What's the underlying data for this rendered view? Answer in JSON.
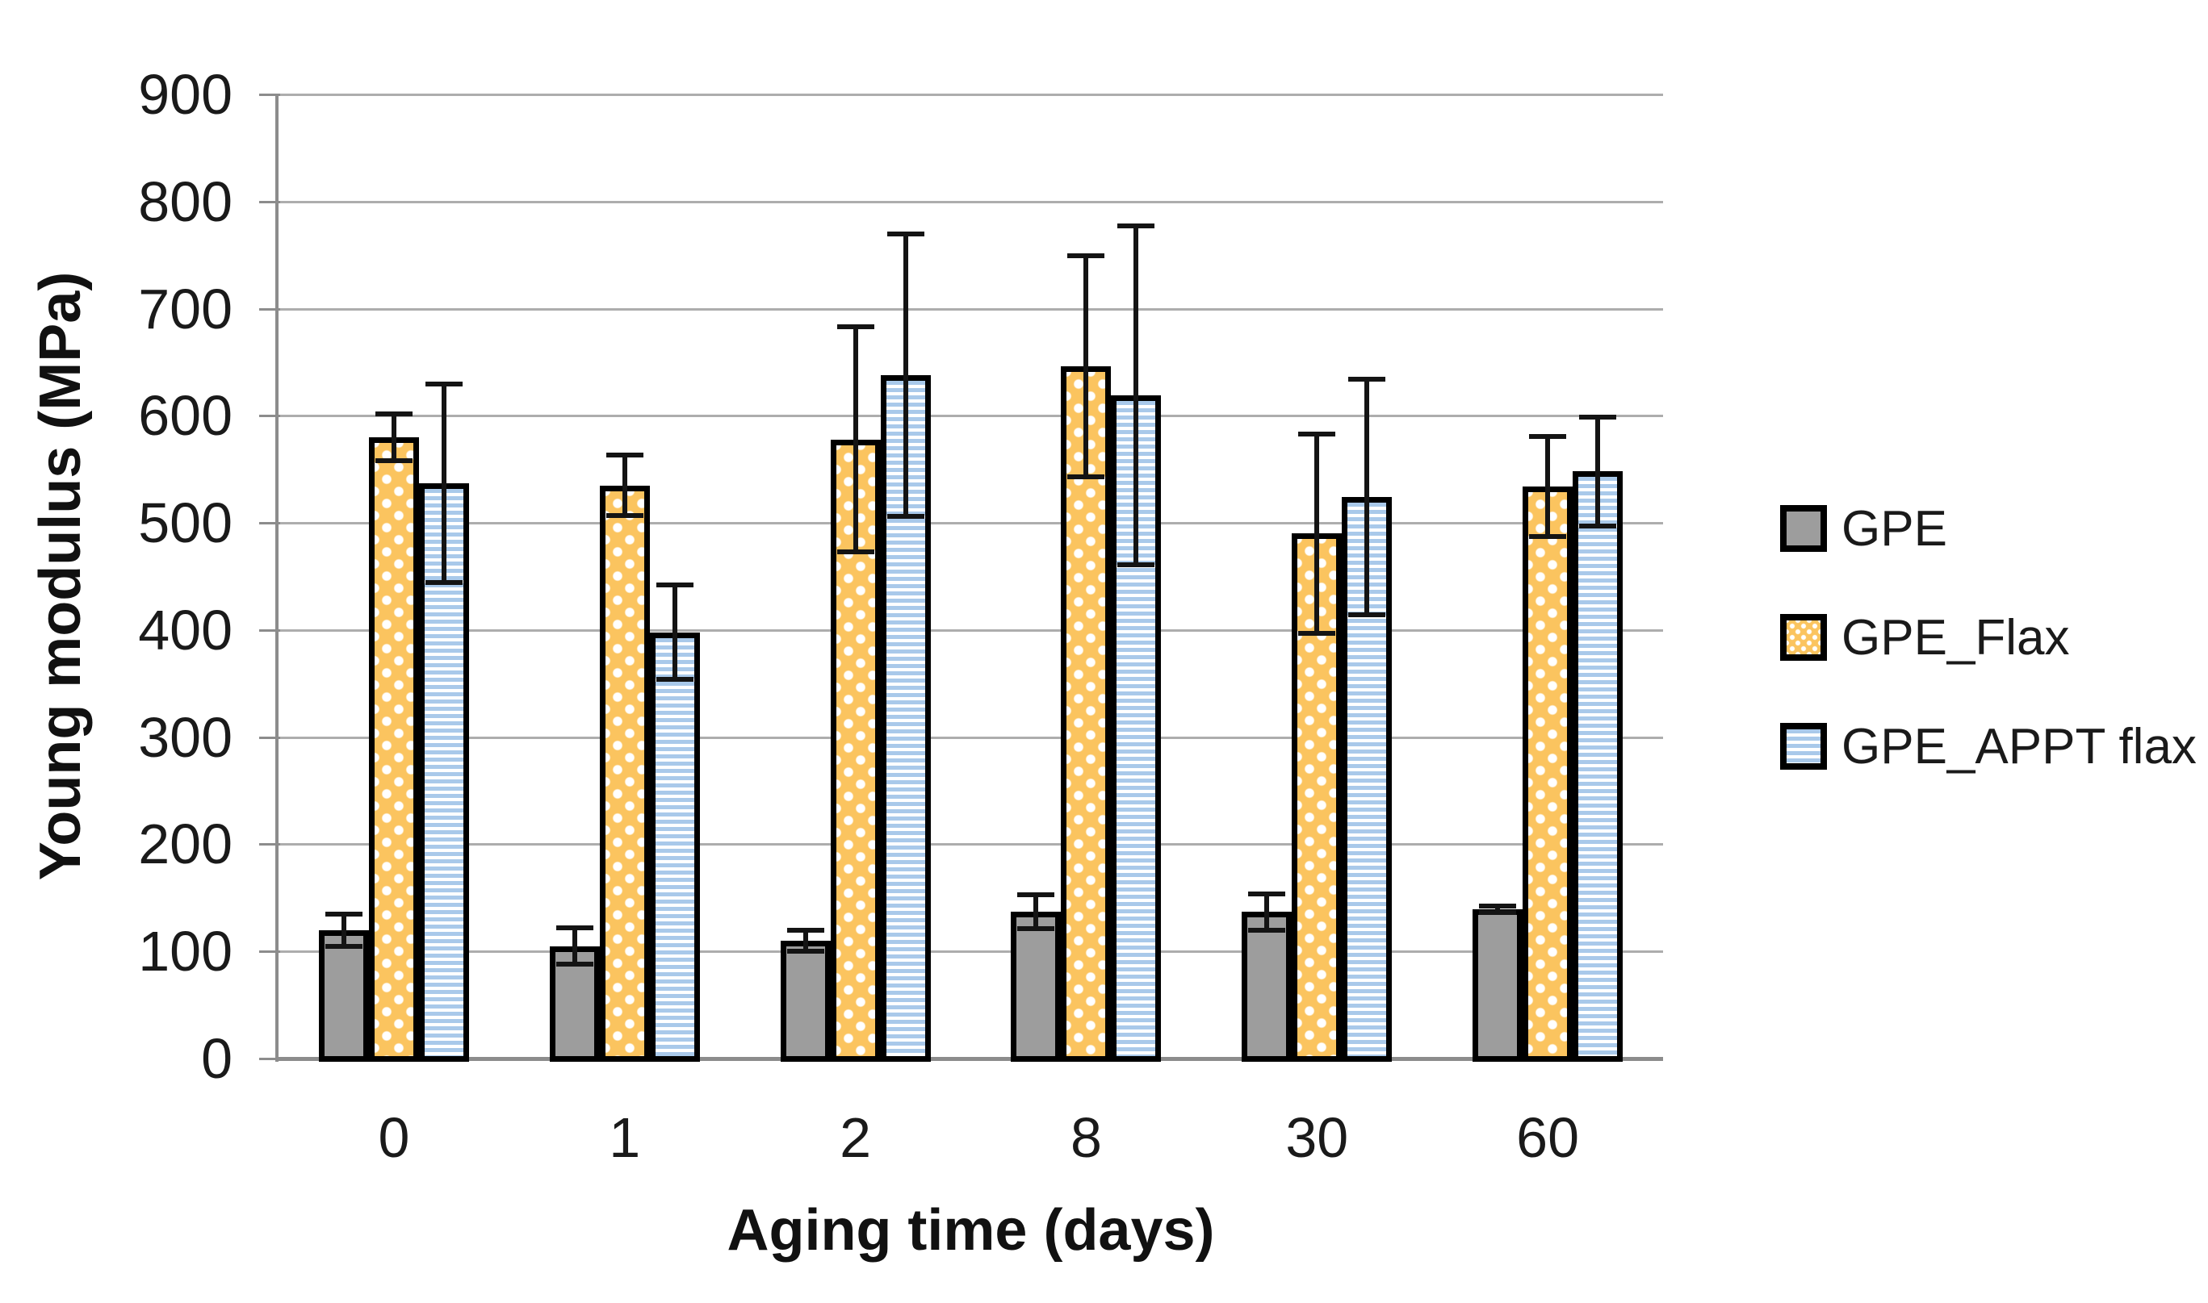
{
  "chart_data": {
    "type": "bar",
    "title": "",
    "xlabel": "Aging time (days)",
    "ylabel": "Young modulus (MPa)",
    "ylim": [
      0,
      900
    ],
    "ytick_step": 100,
    "grid": true,
    "legend_position": "right",
    "categories": [
      "0",
      "1",
      "2",
      "8",
      "30",
      "60"
    ],
    "series": [
      {
        "name": "GPE",
        "style": "solid",
        "fill": "#9D9D9D",
        "values": [
          120,
          105,
          110,
          137,
          137,
          139
        ],
        "errors": [
          15,
          17,
          10,
          16,
          17,
          3
        ]
      },
      {
        "name": "GPE_Flax",
        "style": "dots",
        "fill": "#FBC45F",
        "values": [
          580,
          535,
          578,
          646,
          490,
          534
        ],
        "errors": [
          22,
          28,
          105,
          103,
          93,
          47
        ]
      },
      {
        "name": "GPE_APPT flax",
        "style": "hstripes",
        "fill": "#A9C9EA",
        "values": [
          537,
          398,
          638,
          619,
          524,
          548
        ],
        "errors": [
          93,
          44,
          132,
          158,
          110,
          51
        ]
      }
    ]
  },
  "colors": {
    "background": "#FFFFFF",
    "grid": "#ADADAD",
    "axis": "#8C8C8C",
    "bar_border": "#000000",
    "error_bar": "#141414",
    "text": "#1A1A1A",
    "pattern_dot": "#FFFFFF",
    "stripe_gap": "#FFFFFF"
  }
}
